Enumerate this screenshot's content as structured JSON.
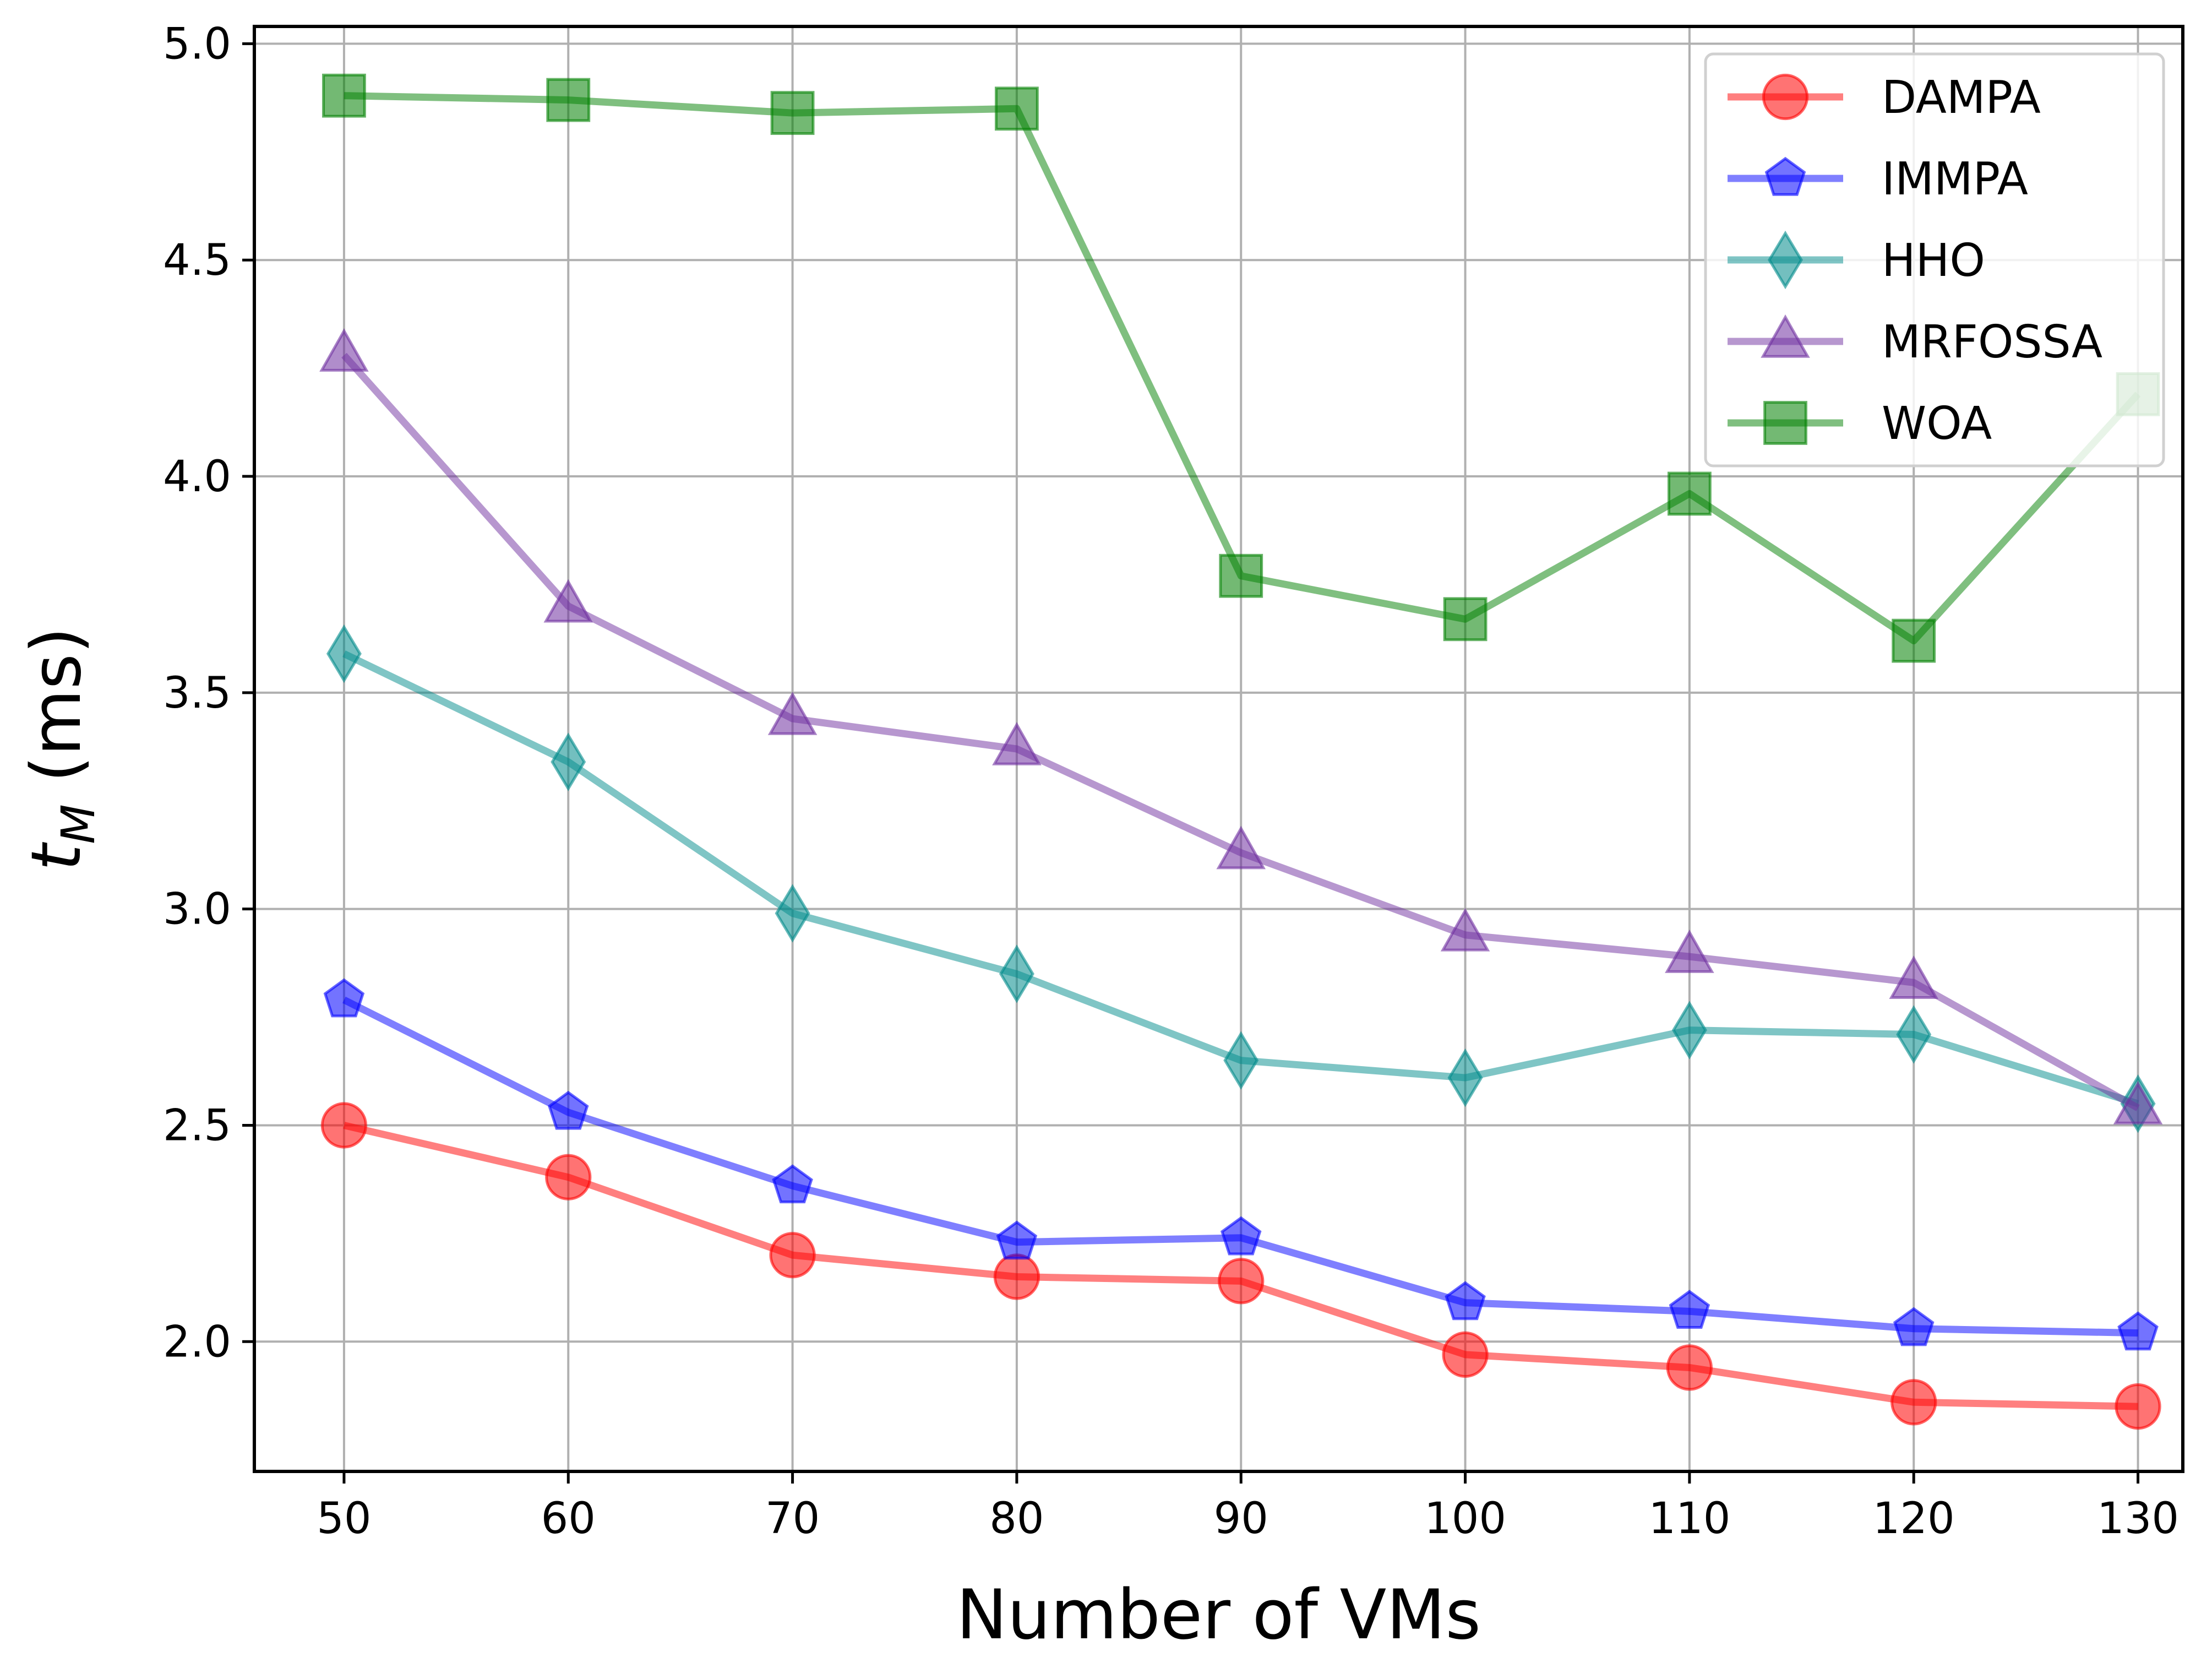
{
  "chart_data": {
    "type": "line",
    "title": "",
    "xlabel": "Number of VMs",
    "ylabel_main": "t",
    "ylabel_sub": "M",
    "ylabel_suffix": " (ms)",
    "x": [
      50,
      60,
      70,
      80,
      90,
      100,
      110,
      120,
      130
    ],
    "xlim": [
      46,
      132
    ],
    "ylim": [
      1.7,
      5.04
    ],
    "xticks": [
      "50",
      "60",
      "70",
      "80",
      "90",
      "100",
      "110",
      "120",
      "130"
    ],
    "yticks": [
      "2.0",
      "2.5",
      "3.0",
      "3.5",
      "4.0",
      "4.5",
      "5.0"
    ],
    "grid": true,
    "legend_position": "top-right",
    "series": [
      {
        "name": "DAMPA",
        "color": "#ff0000",
        "marker": "circle",
        "values": [
          2.5,
          2.38,
          2.2,
          2.15,
          2.14,
          1.97,
          1.94,
          1.86,
          1.85
        ]
      },
      {
        "name": "IMMPA",
        "color": "#0000ff",
        "marker": "pentagon",
        "values": [
          2.79,
          2.53,
          2.36,
          2.23,
          2.24,
          2.09,
          2.07,
          2.03,
          2.02
        ]
      },
      {
        "name": "HHO",
        "color": "#008b8b",
        "marker": "diamond",
        "values": [
          3.59,
          3.34,
          2.99,
          2.85,
          2.65,
          2.61,
          2.72,
          2.71,
          2.55
        ]
      },
      {
        "name": "MRFOSSA",
        "color": "#7030a0",
        "marker": "triangle",
        "values": [
          4.28,
          3.7,
          3.44,
          3.37,
          3.13,
          2.94,
          2.89,
          2.83,
          2.54
        ]
      },
      {
        "name": "WOA",
        "color": "#008000",
        "marker": "square",
        "values": [
          4.88,
          4.87,
          4.84,
          4.85,
          3.77,
          3.67,
          3.96,
          3.62,
          4.19
        ]
      }
    ]
  }
}
